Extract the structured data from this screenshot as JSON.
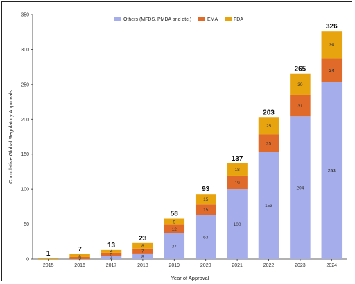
{
  "chart_data": {
    "type": "bar",
    "stacked": true,
    "title": "",
    "xlabel": "Year of Approval",
    "ylabel": "Cumulative Global Regulatory Approvals",
    "ylim": [
      0,
      350
    ],
    "yticks": [
      0,
      50,
      100,
      150,
      200,
      250,
      300,
      350
    ],
    "grid": false,
    "legend_position": "top",
    "categories": [
      "2015",
      "2016",
      "2017",
      "2018",
      "2019",
      "2020",
      "2021",
      "2022",
      "2023",
      "2024"
    ],
    "series": [
      {
        "name": "Others (MFDS, PMDA and etc.)",
        "color": "#a5aeeb",
        "values": [
          0,
          0,
          4,
          8,
          37,
          63,
          100,
          153,
          204,
          253
        ],
        "labels": [
          "",
          "",
          "4",
          "8",
          "37",
          "63",
          "100",
          "153",
          "204",
          "253"
        ]
      },
      {
        "name": "EMA",
        "color": "#e06a2a",
        "values": [
          0,
          3,
          5,
          7,
          12,
          15,
          19,
          25,
          31,
          34
        ],
        "labels": [
          "",
          "3",
          "5",
          "7",
          "12",
          "15",
          "19",
          "25",
          "31",
          "34"
        ]
      },
      {
        "name": "FDA",
        "color": "#e8a40f",
        "values": [
          1,
          4,
          4,
          8,
          9,
          15,
          18,
          25,
          30,
          39
        ],
        "labels": [
          "",
          "4",
          "4",
          "8",
          "9",
          "15",
          "18",
          "25",
          "30",
          "39"
        ]
      }
    ],
    "totals": [
      1,
      7,
      13,
      23,
      58,
      93,
      137,
      203,
      265,
      326
    ],
    "bold_labels": {
      "2024": true
    }
  }
}
